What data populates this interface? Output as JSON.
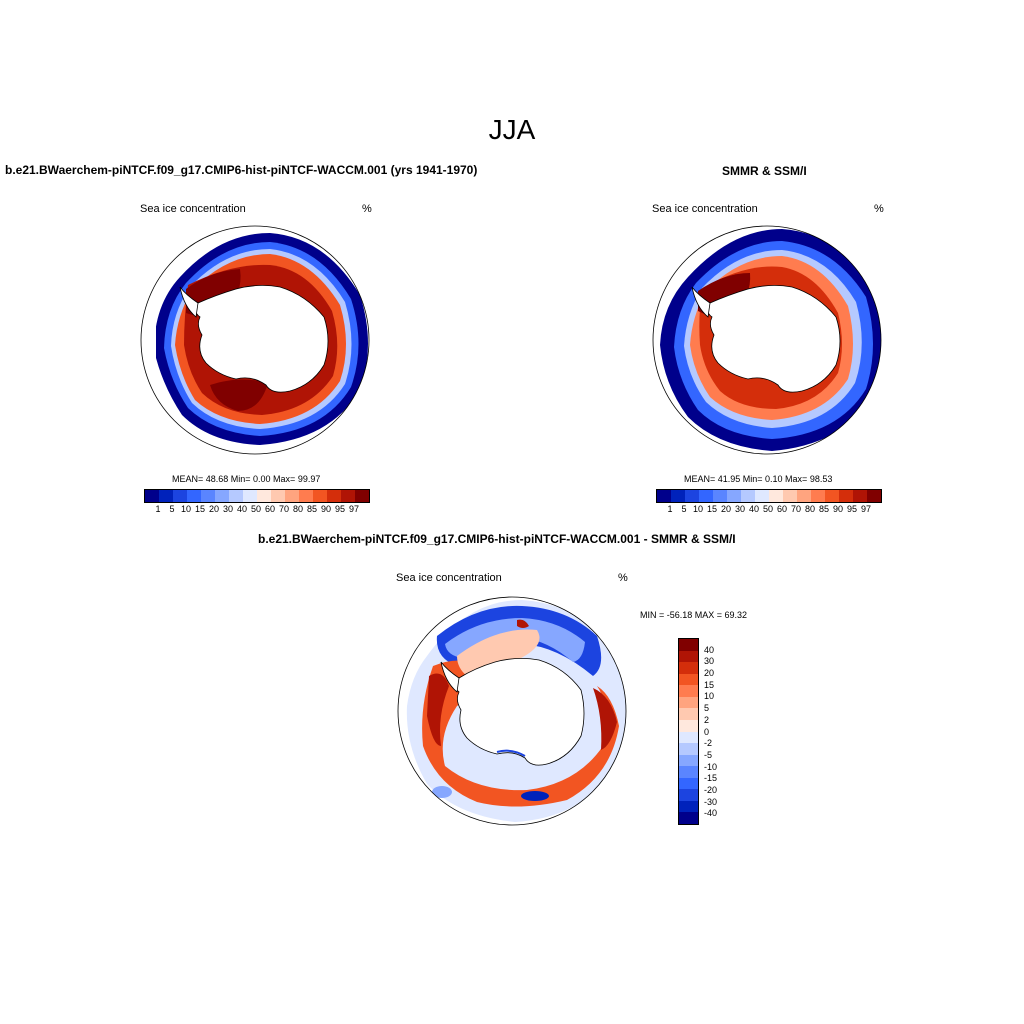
{
  "title": "JJA",
  "left_panel": {
    "title": "b.e21.BWaerchem-piNTCF.f09_g17.CMIP6-hist-piNTCF-WACCM.001 (yrs 1941-1970)",
    "variable": "Sea ice concentration",
    "units": "%",
    "stats": "MEAN=  48.68  Min=   0.00  Max=  99.97"
  },
  "right_panel": {
    "title": "SMMR & SSM/I",
    "variable": "Sea ice concentration",
    "units": "%",
    "stats": "MEAN=  41.95  Min=   0.10  Max=  98.53"
  },
  "diff_panel": {
    "title": "b.e21.BWaerchem-piNTCF.f09_g17.CMIP6-hist-piNTCF-WACCM.001 - SMMR & SSM/I",
    "variable": "Sea ice concentration",
    "units": "%",
    "stats": "MIN = -56.18 MAX =  69.32"
  },
  "colorbar_conc": {
    "labels": [
      "1",
      "5",
      "10",
      "15",
      "20",
      "30",
      "40",
      "50",
      "60",
      "70",
      "80",
      "85",
      "90",
      "95",
      "97"
    ],
    "colors": [
      "#00008b",
      "#0022bb",
      "#1c44e0",
      "#3366ff",
      "#5a85ff",
      "#86a7ff",
      "#b5c9ff",
      "#dfe8ff",
      "#ffe8dd",
      "#ffc9b0",
      "#ffa47f",
      "#ff7c4f",
      "#f25522",
      "#d42e0b",
      "#b01405",
      "#800000"
    ]
  },
  "colorbar_diff": {
    "labels": [
      "40",
      "30",
      "20",
      "15",
      "10",
      "5",
      "2",
      "0",
      "-2",
      "-5",
      "-10",
      "-15",
      "-20",
      "-30",
      "-40"
    ],
    "colors": [
      "#800000",
      "#b01405",
      "#d42e0b",
      "#f25522",
      "#ff7c4f",
      "#ffa47f",
      "#ffc9b0",
      "#ffe8dd",
      "#dfe8ff",
      "#b5c9ff",
      "#86a7ff",
      "#5a85ff",
      "#3366ff",
      "#1c44e0",
      "#0022bb",
      "#00008b"
    ]
  }
}
